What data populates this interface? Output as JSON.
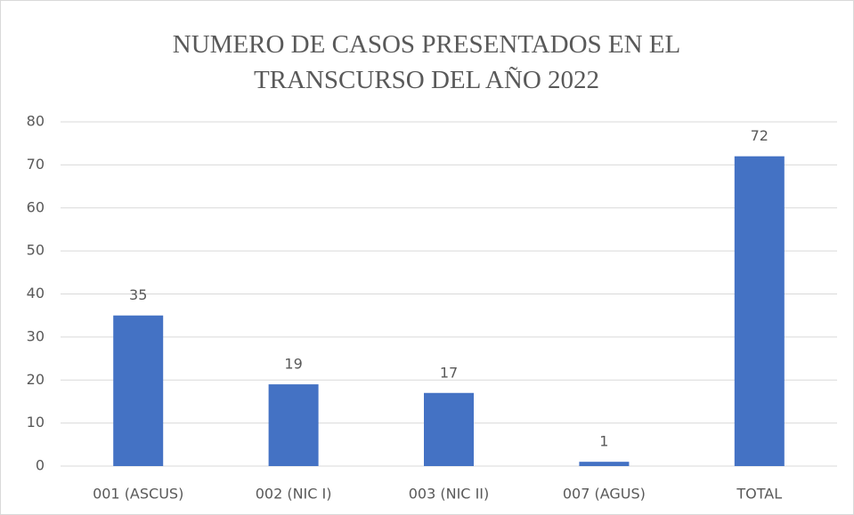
{
  "chart_data": {
    "type": "bar",
    "title": "NUMERO DE CASOS PRESENTADOS EN EL TRANSCURSO DEL AÑO 2022",
    "categories": [
      "001 (ASCUS)",
      "002 (NIC I)",
      "003 (NIC II)",
      "007 (AGUS)",
      "TOTAL"
    ],
    "values": [
      35,
      19,
      17,
      1,
      72
    ],
    "color": "#4472c4",
    "ylim": [
      0,
      80
    ],
    "yticks": [
      0,
      10,
      20,
      30,
      40,
      50,
      60,
      70,
      80
    ],
    "grid": true
  }
}
